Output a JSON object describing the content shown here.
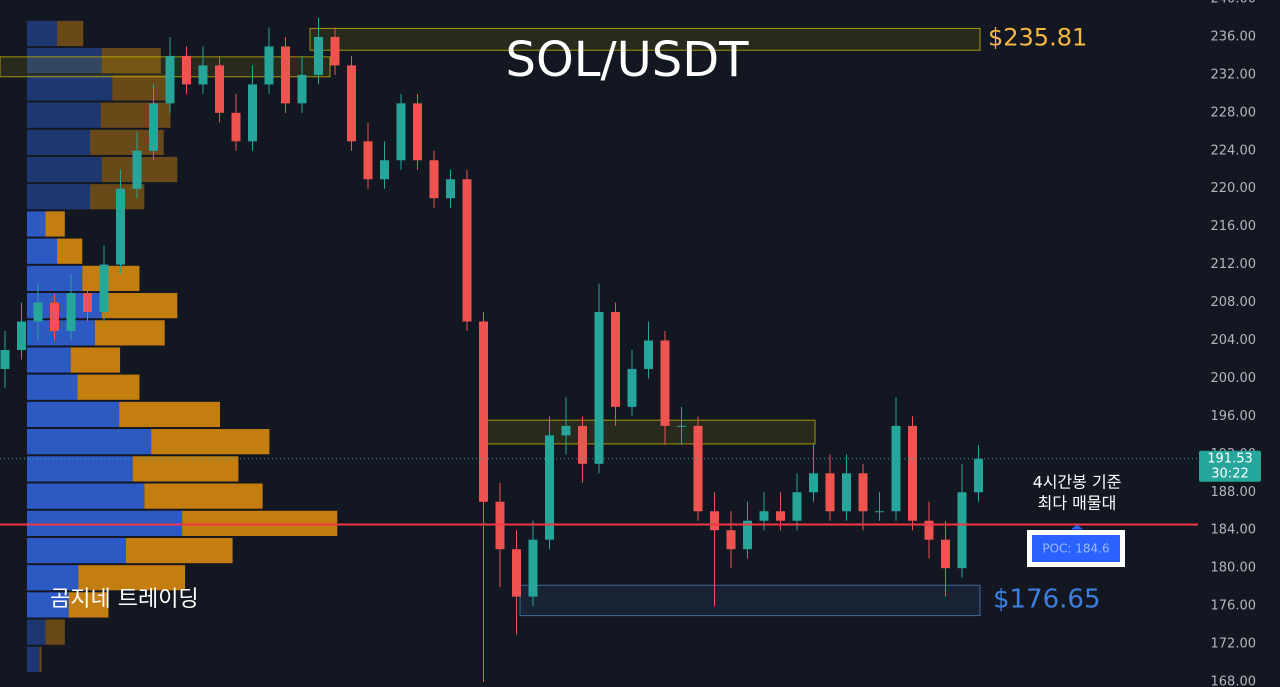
{
  "chart_data": {
    "type": "candlestick",
    "title": "SOL/USDT",
    "watermark": "곰지네 트레이딩",
    "up_color": "#26a69a",
    "down_color": "#ef5350",
    "grid": false,
    "ylim": [
      168,
      240
    ],
    "yticks": [
      {
        "value": 168,
        "label": "168.00"
      },
      {
        "value": 172,
        "label": "172.00"
      },
      {
        "value": 176,
        "label": "176.00"
      },
      {
        "value": 180,
        "label": "180.00"
      },
      {
        "value": 184,
        "label": "184.00"
      },
      {
        "value": 188,
        "label": "188.00"
      },
      {
        "value": 192,
        "label": "192.00"
      },
      {
        "value": 196,
        "label": "196.00"
      },
      {
        "value": 200,
        "label": "200.00"
      },
      {
        "value": 204,
        "label": "204.00"
      },
      {
        "value": 208,
        "label": "208.00"
      },
      {
        "value": 212,
        "label": "212.00"
      },
      {
        "value": 216,
        "label": "216.00"
      },
      {
        "value": 220,
        "label": "220.00"
      },
      {
        "value": 224,
        "label": "224.00"
      },
      {
        "value": 228,
        "label": "228.00"
      },
      {
        "value": 232,
        "label": "232.00"
      },
      {
        "value": 236,
        "label": "236.00"
      },
      {
        "value": 240,
        "label": "240.00"
      }
    ],
    "open": [
      201,
      203,
      206,
      208,
      205,
      209,
      207,
      212,
      220,
      224,
      229,
      234,
      231,
      233,
      228,
      225,
      231,
      235,
      229,
      232,
      236,
      233,
      225,
      221,
      223,
      229,
      223,
      219,
      221,
      206,
      187,
      182,
      177,
      183,
      194,
      195,
      191,
      207,
      197,
      201,
      204,
      195,
      195,
      186,
      184,
      182,
      185,
      186,
      185,
      188,
      190,
      186,
      190,
      186,
      186,
      195,
      185,
      183,
      180,
      188
    ],
    "high": [
      205,
      208,
      210,
      209,
      211,
      210,
      214,
      222,
      226,
      231,
      236,
      235,
      235,
      234,
      230,
      233,
      237,
      236,
      234,
      238,
      237,
      234,
      227,
      225,
      230,
      230,
      224,
      222,
      222,
      207,
      189,
      184,
      185,
      196,
      198,
      196,
      210,
      208,
      203,
      206,
      205,
      197,
      196,
      188,
      186,
      187,
      188,
      188,
      190,
      193,
      192,
      192,
      191,
      188,
      198,
      196,
      187,
      185,
      191,
      193
    ],
    "low": [
      199,
      202,
      204,
      204,
      204,
      206,
      206,
      211,
      219,
      223,
      228,
      230,
      230,
      227,
      224,
      224,
      230,
      228,
      228,
      231,
      232,
      224,
      220,
      220,
      222,
      222,
      218,
      218,
      205,
      168,
      178,
      173,
      176,
      182,
      192,
      189,
      190,
      195,
      196,
      200,
      193,
      193,
      185,
      176,
      180,
      181,
      184,
      184,
      184,
      187,
      185,
      185,
      184,
      185,
      185,
      184,
      181,
      177,
      179,
      187
    ],
    "close": [
      203,
      206,
      208,
      205,
      209,
      207,
      212,
      220,
      224,
      229,
      234,
      231,
      233,
      228,
      225,
      231,
      235,
      229,
      232,
      236,
      233,
      225,
      221,
      223,
      229,
      223,
      219,
      221,
      206,
      187,
      182,
      177,
      183,
      194,
      195,
      191,
      207,
      197,
      201,
      204,
      195,
      195,
      186,
      184,
      182,
      185,
      186,
      185,
      188,
      190,
      186,
      190,
      186,
      186,
      195,
      185,
      183,
      180,
      188,
      191.53
    ],
    "zones": [
      {
        "label": "$235.81",
        "value": 235.81,
        "low": 234.6,
        "high": 236.9,
        "color": "#c8b400"
      },
      {
        "low": 231.8,
        "high": 233.9,
        "color": "#c8b400"
      },
      {
        "low": 193.1,
        "high": 195.6,
        "color": "#c8b400"
      },
      {
        "label": "$176.65",
        "value": 176.65,
        "low": 175.0,
        "high": 178.2,
        "color": "#4a7fb5"
      }
    ],
    "last_price": {
      "value": 191.53,
      "countdown": "30:22",
      "color": "#26a69a"
    },
    "poc": {
      "value": 184.6,
      "label": "POC: 184.6",
      "note": [
        "4시간봉 기준",
        "최다 매물대"
      ],
      "color": "#f23645"
    },
    "volume_profile": {
      "bins": [
        237.8,
        234.93,
        232.06,
        229.19,
        226.32,
        223.46,
        220.59,
        217.72,
        214.85,
        211.98,
        209.11,
        206.24,
        203.37,
        200.51,
        197.64,
        194.77,
        191.9,
        189.03,
        186.16,
        183.29,
        180.42,
        177.56,
        174.69,
        171.82,
        168.95
      ],
      "buy": [
        31,
        77,
        88,
        76,
        65,
        77,
        65,
        19,
        31,
        57,
        77,
        70,
        45,
        52,
        95,
        128,
        109,
        121,
        160,
        102,
        53,
        43,
        19,
        13
      ],
      "sell": [
        27,
        61,
        60,
        72,
        76,
        78,
        56,
        20,
        26,
        59,
        78,
        72,
        51,
        64,
        104,
        122,
        109,
        122,
        160,
        110,
        110,
        41,
        20,
        2
      ],
      "xlim": [
        0,
        330
      ],
      "value_area": [
        174.69,
        217.72
      ],
      "buy_color": "#2f5fd0",
      "sell_color": "#d4880f"
    }
  }
}
